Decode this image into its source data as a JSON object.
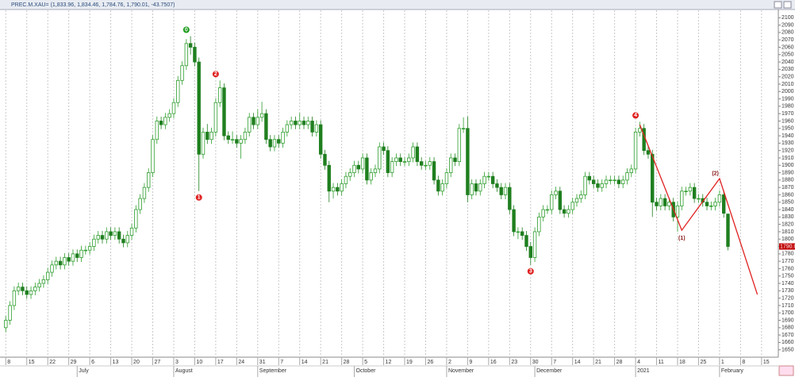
{
  "chart_data": {
    "type": "candlestick",
    "title": "PREC.M.XAU= (1,833.96, 1,834.46, 1,784.76, 1,790.01, -43.7507)",
    "up_color": "#2e9e2e",
    "down_color": "#1f7f1f",
    "candles": [
      [
        1680,
        1696,
        1674,
        1690
      ],
      [
        1690,
        1716,
        1684,
        1710
      ],
      [
        1710,
        1736,
        1704,
        1730
      ],
      [
        1730,
        1741,
        1724,
        1735
      ],
      [
        1735,
        1741,
        1724,
        1730
      ],
      [
        1730,
        1736,
        1719,
        1725
      ],
      [
        1725,
        1736,
        1719,
        1730
      ],
      [
        1730,
        1741,
        1724,
        1735
      ],
      [
        1735,
        1746,
        1729,
        1740
      ],
      [
        1740,
        1751,
        1734,
        1745
      ],
      [
        1745,
        1761,
        1739,
        1755
      ],
      [
        1755,
        1771,
        1749,
        1765
      ],
      [
        1765,
        1776,
        1759,
        1770
      ],
      [
        1770,
        1776,
        1759,
        1765
      ],
      [
        1765,
        1781,
        1759,
        1775
      ],
      [
        1775,
        1781,
        1764,
        1770
      ],
      [
        1770,
        1786,
        1764,
        1780
      ],
      [
        1780,
        1786,
        1769,
        1775
      ],
      [
        1775,
        1791,
        1769,
        1785
      ],
      [
        1785,
        1791,
        1779,
        1785
      ],
      [
        1785,
        1796,
        1779,
        1790
      ],
      [
        1790,
        1806,
        1784,
        1800
      ],
      [
        1800,
        1811,
        1794,
        1805
      ],
      [
        1805,
        1811,
        1794,
        1800
      ],
      [
        1800,
        1816,
        1794,
        1810
      ],
      [
        1810,
        1816,
        1799,
        1805
      ],
      [
        1805,
        1816,
        1799,
        1810
      ],
      [
        1810,
        1816,
        1794,
        1800
      ],
      [
        1800,
        1806,
        1789,
        1795
      ],
      [
        1795,
        1811,
        1789,
        1805
      ],
      [
        1805,
        1821,
        1799,
        1815
      ],
      [
        1815,
        1846,
        1809,
        1840
      ],
      [
        1840,
        1861,
        1834,
        1855
      ],
      [
        1855,
        1876,
        1849,
        1870
      ],
      [
        1870,
        1896,
        1864,
        1890
      ],
      [
        1890,
        1941,
        1884,
        1935
      ],
      [
        1935,
        1966,
        1929,
        1960
      ],
      [
        1960,
        1966,
        1949,
        1955
      ],
      [
        1955,
        1971,
        1949,
        1965
      ],
      [
        1965,
        1976,
        1959,
        1970
      ],
      [
        1970,
        1991,
        1964,
        1985
      ],
      [
        1985,
        2021,
        1979,
        2015
      ],
      [
        2015,
        2041,
        2009,
        2035
      ],
      [
        2035,
        2071,
        2029,
        2065
      ],
      [
        2065,
        2075,
        2050,
        2060
      ],
      [
        2060,
        2066,
        2034,
        2040
      ],
      [
        2040,
        2046,
        1865,
        1915
      ],
      [
        1915,
        1951,
        1909,
        1945
      ],
      [
        1945,
        1956,
        1929,
        1935
      ],
      [
        1935,
        1951,
        1929,
        1945
      ],
      [
        1945,
        1991,
        1939,
        1985
      ],
      [
        1985,
        2015,
        1979,
        2005
      ],
      [
        2005,
        2011,
        1934,
        1940
      ],
      [
        1940,
        1946,
        1929,
        1935
      ],
      [
        1935,
        1946,
        1929,
        1935
      ],
      [
        1935,
        1941,
        1924,
        1930
      ],
      [
        1930,
        1941,
        1909,
        1935
      ],
      [
        1935,
        1951,
        1929,
        1945
      ],
      [
        1945,
        1971,
        1939,
        1965
      ],
      [
        1965,
        1971,
        1949,
        1955
      ],
      [
        1955,
        1976,
        1949,
        1965
      ],
      [
        1965,
        1986,
        1959,
        1970
      ],
      [
        1970,
        1976,
        1929,
        1935
      ],
      [
        1935,
        1941,
        1919,
        1925
      ],
      [
        1925,
        1941,
        1919,
        1935
      ],
      [
        1935,
        1941,
        1924,
        1930
      ],
      [
        1930,
        1951,
        1924,
        1945
      ],
      [
        1945,
        1961,
        1939,
        1955
      ],
      [
        1955,
        1966,
        1949,
        1960
      ],
      [
        1960,
        1966,
        1949,
        1955
      ],
      [
        1955,
        1971,
        1949,
        1960
      ],
      [
        1960,
        1966,
        1949,
        1955
      ],
      [
        1955,
        1966,
        1949,
        1960
      ],
      [
        1960,
        1966,
        1939,
        1945
      ],
      [
        1945,
        1961,
        1939,
        1955
      ],
      [
        1955,
        1961,
        1909,
        1915
      ],
      [
        1915,
        1921,
        1894,
        1900
      ],
      [
        1900,
        1906,
        1850,
        1865
      ],
      [
        1865,
        1876,
        1855,
        1870
      ],
      [
        1870,
        1876,
        1859,
        1865
      ],
      [
        1865,
        1881,
        1859,
        1875
      ],
      [
        1875,
        1891,
        1869,
        1885
      ],
      [
        1885,
        1896,
        1879,
        1890
      ],
      [
        1890,
        1906,
        1884,
        1900
      ],
      [
        1900,
        1906,
        1889,
        1895
      ],
      [
        1895,
        1916,
        1889,
        1910
      ],
      [
        1910,
        1916,
        1874,
        1880
      ],
      [
        1880,
        1896,
        1874,
        1890
      ],
      [
        1890,
        1901,
        1884,
        1895
      ],
      [
        1895,
        1931,
        1889,
        1925
      ],
      [
        1925,
        1931,
        1914,
        1920
      ],
      [
        1920,
        1926,
        1884,
        1890
      ],
      [
        1890,
        1911,
        1884,
        1905
      ],
      [
        1905,
        1916,
        1899,
        1910
      ],
      [
        1910,
        1916,
        1899,
        1905
      ],
      [
        1905,
        1911,
        1899,
        1905
      ],
      [
        1905,
        1916,
        1899,
        1910
      ],
      [
        1910,
        1931,
        1904,
        1925
      ],
      [
        1925,
        1931,
        1899,
        1905
      ],
      [
        1905,
        1911,
        1894,
        1900
      ],
      [
        1900,
        1906,
        1894,
        1900
      ],
      [
        1900,
        1911,
        1894,
        1905
      ],
      [
        1905,
        1911,
        1874,
        1880
      ],
      [
        1880,
        1886,
        1859,
        1865
      ],
      [
        1865,
        1881,
        1859,
        1875
      ],
      [
        1875,
        1896,
        1869,
        1890
      ],
      [
        1890,
        1916,
        1884,
        1910
      ],
      [
        1910,
        1916,
        1899,
        1905
      ],
      [
        1905,
        1956,
        1899,
        1950
      ],
      [
        1950,
        1965,
        1944,
        1950
      ],
      [
        1950,
        1966,
        1850,
        1860
      ],
      [
        1860,
        1881,
        1854,
        1875
      ],
      [
        1875,
        1881,
        1859,
        1865
      ],
      [
        1865,
        1881,
        1859,
        1875
      ],
      [
        1875,
        1891,
        1869,
        1885
      ],
      [
        1885,
        1891,
        1879,
        1885
      ],
      [
        1885,
        1891,
        1869,
        1875
      ],
      [
        1875,
        1881,
        1864,
        1870
      ],
      [
        1870,
        1876,
        1854,
        1860
      ],
      [
        1860,
        1876,
        1854,
        1870
      ],
      [
        1870,
        1876,
        1834,
        1840
      ],
      [
        1840,
        1846,
        1804,
        1810
      ],
      [
        1810,
        1816,
        1800,
        1810
      ],
      [
        1810,
        1816,
        1799,
        1805
      ],
      [
        1805,
        1811,
        1784,
        1790
      ],
      [
        1790,
        1796,
        1765,
        1775
      ],
      [
        1775,
        1816,
        1769,
        1810
      ],
      [
        1810,
        1836,
        1804,
        1830
      ],
      [
        1830,
        1846,
        1824,
        1840
      ],
      [
        1840,
        1846,
        1834,
        1840
      ],
      [
        1840,
        1866,
        1834,
        1860
      ],
      [
        1860,
        1871,
        1854,
        1865
      ],
      [
        1865,
        1871,
        1834,
        1840
      ],
      [
        1840,
        1846,
        1829,
        1835
      ],
      [
        1835,
        1846,
        1829,
        1840
      ],
      [
        1840,
        1856,
        1834,
        1850
      ],
      [
        1850,
        1861,
        1844,
        1855
      ],
      [
        1855,
        1866,
        1849,
        1860
      ],
      [
        1860,
        1891,
        1854,
        1885
      ],
      [
        1885,
        1891,
        1874,
        1880
      ],
      [
        1880,
        1886,
        1869,
        1875
      ],
      [
        1875,
        1881,
        1864,
        1870
      ],
      [
        1870,
        1881,
        1864,
        1875
      ],
      [
        1875,
        1886,
        1869,
        1880
      ],
      [
        1880,
        1886,
        1874,
        1880
      ],
      [
        1880,
        1886,
        1874,
        1880
      ],
      [
        1880,
        1886,
        1869,
        1875
      ],
      [
        1875,
        1886,
        1869,
        1880
      ],
      [
        1880,
        1896,
        1874,
        1890
      ],
      [
        1890,
        1901,
        1884,
        1895
      ],
      [
        1895,
        1951,
        1889,
        1945
      ],
      [
        1945,
        1959,
        1939,
        1950
      ],
      [
        1950,
        1956,
        1914,
        1920
      ],
      [
        1920,
        1926,
        1909,
        1915
      ],
      [
        1915,
        1921,
        1830,
        1850
      ],
      [
        1850,
        1856,
        1839,
        1845
      ],
      [
        1845,
        1861,
        1839,
        1855
      ],
      [
        1855,
        1861,
        1839,
        1845
      ],
      [
        1845,
        1856,
        1839,
        1850
      ],
      [
        1850,
        1856,
        1824,
        1830
      ],
      [
        1830,
        1851,
        1810,
        1845
      ],
      [
        1845,
        1871,
        1839,
        1865
      ],
      [
        1865,
        1871,
        1859,
        1865
      ],
      [
        1865,
        1876,
        1859,
        1870
      ],
      [
        1870,
        1876,
        1849,
        1855
      ],
      [
        1855,
        1861,
        1849,
        1855
      ],
      [
        1855,
        1861,
        1844,
        1850
      ],
      [
        1850,
        1856,
        1839,
        1845
      ],
      [
        1845,
        1851,
        1839,
        1845
      ],
      [
        1845,
        1856,
        1839,
        1850
      ],
      [
        1850,
        1866,
        1844,
        1860
      ],
      [
        1860,
        1866,
        1829,
        1835
      ],
      [
        1833.96,
        1834.46,
        1784.76,
        1790.01
      ]
    ],
    "xlim": [
      -1,
      184
    ],
    "xticks": [
      {
        "value": 0,
        "label": "8"
      },
      {
        "value": 5,
        "label": "15"
      },
      {
        "value": 10,
        "label": "22"
      },
      {
        "value": 15,
        "label": "29"
      },
      {
        "value": 20,
        "label": "6"
      },
      {
        "value": 25,
        "label": "13"
      },
      {
        "value": 30,
        "label": "20"
      },
      {
        "value": 35,
        "label": "27"
      },
      {
        "value": 40,
        "label": "3"
      },
      {
        "value": 45,
        "label": "10"
      },
      {
        "value": 50,
        "label": "17"
      },
      {
        "value": 55,
        "label": "24"
      },
      {
        "value": 60,
        "label": "31"
      },
      {
        "value": 65,
        "label": "7"
      },
      {
        "value": 70,
        "label": "14"
      },
      {
        "value": 75,
        "label": "21"
      },
      {
        "value": 80,
        "label": "28"
      },
      {
        "value": 85,
        "label": "5"
      },
      {
        "value": 90,
        "label": "12"
      },
      {
        "value": 95,
        "label": "19"
      },
      {
        "value": 100,
        "label": "26"
      },
      {
        "value": 105,
        "label": "2"
      },
      {
        "value": 110,
        "label": "9"
      },
      {
        "value": 115,
        "label": "16"
      },
      {
        "value": 120,
        "label": "23"
      },
      {
        "value": 125,
        "label": "30"
      },
      {
        "value": 130,
        "label": "7"
      },
      {
        "value": 135,
        "label": "14"
      },
      {
        "value": 140,
        "label": "21"
      },
      {
        "value": 145,
        "label": "28"
      },
      {
        "value": 150,
        "label": "4"
      },
      {
        "value": 155,
        "label": "11"
      },
      {
        "value": 160,
        "label": "18"
      },
      {
        "value": 165,
        "label": "25"
      },
      {
        "value": 170,
        "label": "1"
      },
      {
        "value": 175,
        "label": "8"
      },
      {
        "value": 180,
        "label": "15"
      }
    ],
    "months": [
      {
        "value": 17,
        "label": "July"
      },
      {
        "value": 40,
        "label": "August"
      },
      {
        "value": 60,
        "label": "September"
      },
      {
        "value": 83,
        "label": "October"
      },
      {
        "value": 105,
        "label": "November"
      },
      {
        "value": 126,
        "label": "December"
      },
      {
        "value": 150,
        "label": "2021"
      },
      {
        "value": 170,
        "label": "February"
      }
    ],
    "ylim": [
      1640,
      2110
    ],
    "yticks": [
      1650,
      1660,
      1670,
      1680,
      1690,
      1700,
      1710,
      1720,
      1730,
      1740,
      1750,
      1760,
      1770,
      1780,
      1790,
      1800,
      1810,
      1820,
      1830,
      1840,
      1850,
      1860,
      1870,
      1880,
      1890,
      1900,
      1910,
      1920,
      1930,
      1940,
      1950,
      1960,
      1970,
      1980,
      1990,
      2000,
      2010,
      2020,
      2030,
      2040,
      2050,
      2060,
      2070,
      2080,
      2090,
      2100
    ],
    "last_price_label": "1790.01",
    "wave_labels": [
      {
        "index": 43,
        "value": 2075,
        "label": "0",
        "color": "#1a9a1a"
      },
      {
        "index": 46,
        "value": 1865,
        "label": "1",
        "color": "#e02020"
      },
      {
        "index": 50,
        "value": 2015,
        "label": "2",
        "color": "#e02020"
      },
      {
        "index": 125,
        "value": 1765,
        "label": "3",
        "color": "#e02020"
      },
      {
        "index": 150,
        "value": 1959,
        "label": "4",
        "color": "#e02020"
      },
      {
        "index": 161,
        "value": 1810,
        "label": "(1)",
        "color": "#8b1a1a"
      },
      {
        "index": 169,
        "value": 1880,
        "label": "(2)",
        "color": "#8b1a1a"
      }
    ],
    "projection": {
      "color": "#e02020",
      "x": [
        151,
        161,
        170,
        179
      ],
      "values": [
        1955,
        1812,
        1882,
        1725
      ]
    }
  }
}
